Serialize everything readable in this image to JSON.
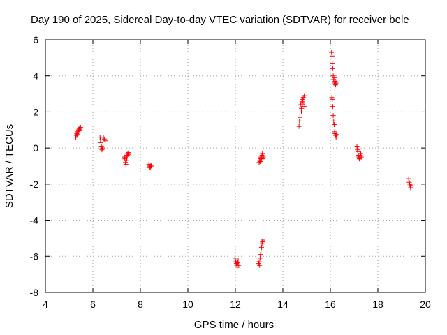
{
  "chart_data": {
    "type": "scatter",
    "title": "Day 190 of 2025, Sidereal Day-to-day VTEC variation (SDTVAR) for receiver bele",
    "xlabel": "GPS time / hours",
    "ylabel": "SDTVAR / TECUs",
    "xlim": [
      4,
      20
    ],
    "ylim": [
      -8,
      6
    ],
    "xticks": [
      4,
      6,
      8,
      10,
      12,
      14,
      16,
      18,
      20
    ],
    "yticks": [
      -8,
      -6,
      -4,
      -2,
      0,
      2,
      4,
      6
    ],
    "xtick_labels": [
      "4",
      "6",
      "8",
      "10",
      "12",
      "14",
      "16",
      "18",
      "20"
    ],
    "ytick_labels": [
      "-8",
      "-6",
      "-4",
      "-2",
      "0",
      "2",
      "4",
      "6"
    ],
    "grid": true,
    "marker": "+",
    "marker_color": "#ff0000",
    "series": [
      {
        "name": "SDTVAR",
        "points": [
          [
            5.28,
            0.6
          ],
          [
            5.3,
            0.7
          ],
          [
            5.32,
            0.8
          ],
          [
            5.34,
            0.75
          ],
          [
            5.36,
            0.9
          ],
          [
            5.38,
            0.95
          ],
          [
            5.4,
            1.0
          ],
          [
            5.42,
            1.05
          ],
          [
            5.44,
            1.1
          ],
          [
            5.46,
            1.0
          ],
          [
            5.48,
            1.15
          ],
          [
            6.3,
            0.6
          ],
          [
            6.32,
            0.45
          ],
          [
            6.34,
            0.3
          ],
          [
            6.36,
            0.1
          ],
          [
            6.38,
            -0.1
          ],
          [
            6.4,
            0.0
          ],
          [
            6.44,
            0.6
          ],
          [
            6.48,
            0.5
          ],
          [
            6.52,
            0.4
          ],
          [
            7.33,
            -0.5
          ],
          [
            7.35,
            -0.6
          ],
          [
            7.37,
            -0.8
          ],
          [
            7.39,
            -0.9
          ],
          [
            7.41,
            -0.7
          ],
          [
            7.43,
            -0.55
          ],
          [
            7.45,
            -0.4
          ],
          [
            7.47,
            -0.3
          ],
          [
            7.49,
            -0.35
          ],
          [
            7.51,
            -0.25
          ],
          [
            8.36,
            -0.9
          ],
          [
            8.38,
            -1.0
          ],
          [
            8.4,
            -1.05
          ],
          [
            8.42,
            -1.1
          ],
          [
            8.44,
            -0.95
          ],
          [
            8.46,
            -1.0
          ],
          [
            11.98,
            -6.1
          ],
          [
            12.0,
            -6.2
          ],
          [
            12.02,
            -6.3
          ],
          [
            12.04,
            -6.4
          ],
          [
            12.06,
            -6.5
          ],
          [
            12.08,
            -6.6
          ],
          [
            12.1,
            -6.35
          ],
          [
            12.12,
            -6.2
          ],
          [
            12.14,
            -6.5
          ],
          [
            12.98,
            -6.4
          ],
          [
            13.0,
            -6.3
          ],
          [
            13.02,
            -6.5
          ],
          [
            13.04,
            -6.1
          ],
          [
            13.06,
            -5.9
          ],
          [
            13.08,
            -5.7
          ],
          [
            13.1,
            -5.5
          ],
          [
            13.12,
            -5.3
          ],
          [
            13.14,
            -5.2
          ],
          [
            13.16,
            -5.1
          ],
          [
            13.0,
            -0.8
          ],
          [
            13.02,
            -0.7
          ],
          [
            13.04,
            -0.75
          ],
          [
            13.06,
            -0.6
          ],
          [
            13.08,
            -0.5
          ],
          [
            13.1,
            -0.55
          ],
          [
            13.12,
            -0.4
          ],
          [
            13.14,
            -0.3
          ],
          [
            13.16,
            -0.6
          ],
          [
            13.18,
            -0.5
          ],
          [
            14.68,
            1.2
          ],
          [
            14.7,
            1.5
          ],
          [
            14.72,
            1.7
          ],
          [
            14.74,
            2.4
          ],
          [
            14.76,
            2.5
          ],
          [
            14.78,
            2.2
          ],
          [
            14.8,
            2.6
          ],
          [
            14.82,
            2.4
          ],
          [
            14.84,
            2.7
          ],
          [
            14.86,
            2.8
          ],
          [
            14.88,
            2.5
          ],
          [
            14.9,
            2.9
          ],
          [
            14.92,
            2.3
          ],
          [
            14.78,
            2.0
          ],
          [
            14.84,
            2.6
          ],
          [
            16.05,
            5.3
          ],
          [
            16.07,
            5.1
          ],
          [
            16.08,
            4.7
          ],
          [
            16.1,
            4.4
          ],
          [
            16.12,
            4.0
          ],
          [
            16.14,
            3.8
          ],
          [
            16.16,
            3.6
          ],
          [
            16.18,
            3.9
          ],
          [
            16.2,
            3.7
          ],
          [
            16.22,
            3.5
          ],
          [
            16.24,
            3.6
          ],
          [
            16.06,
            2.8
          ],
          [
            16.08,
            2.7
          ],
          [
            16.1,
            2.3
          ],
          [
            16.12,
            1.8
          ],
          [
            16.14,
            1.5
          ],
          [
            16.16,
            1.3
          ],
          [
            16.18,
            0.9
          ],
          [
            16.2,
            0.8
          ],
          [
            16.22,
            0.7
          ],
          [
            16.24,
            0.6
          ],
          [
            16.26,
            0.75
          ],
          [
            17.12,
            0.1
          ],
          [
            17.14,
            -0.1
          ],
          [
            17.16,
            -0.2
          ],
          [
            17.18,
            -0.4
          ],
          [
            17.2,
            -0.5
          ],
          [
            17.22,
            -0.6
          ],
          [
            17.24,
            -0.55
          ],
          [
            17.26,
            -0.4
          ],
          [
            17.28,
            -0.3
          ],
          [
            17.3,
            -0.5
          ],
          [
            19.3,
            -1.7
          ],
          [
            19.32,
            -1.9
          ],
          [
            19.34,
            -2.0
          ],
          [
            19.36,
            -2.1
          ],
          [
            19.38,
            -2.2
          ],
          [
            19.4,
            -2.05
          ]
        ]
      }
    ]
  }
}
